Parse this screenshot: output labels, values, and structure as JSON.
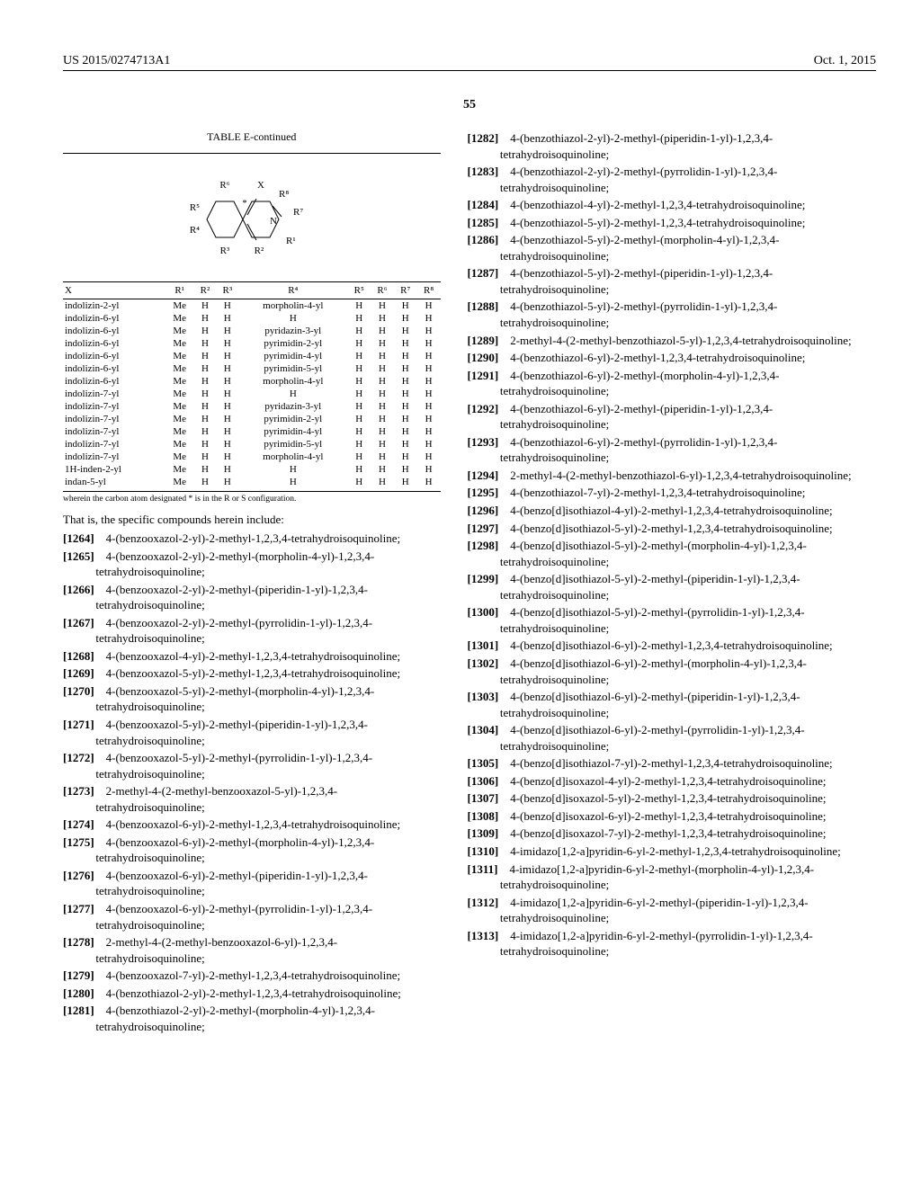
{
  "header": {
    "pubno": "US 2015/0274713A1",
    "pubdate": "Oct. 1, 2015",
    "pagenum": "55"
  },
  "table": {
    "title": "TABLE E-continued",
    "diagram": "            R⁶        X\n                ╲   ╱  ╲ R⁸\n      R⁵─┤     *        ├─R⁷\n         │    ╱ ╲    ╱│\n         │   │   │  N │\n      R⁴─┤    ╲ ╱    ╲│\n                │        R¹\n            R³        R²",
    "headers": [
      "X",
      "R¹",
      "R²",
      "R³",
      "R⁴",
      "R⁵",
      "R⁶",
      "R⁷",
      "R⁸"
    ],
    "rows": [
      [
        "indolizin-2-yl",
        "Me",
        "H",
        "H",
        "morpholin-4-yl",
        "H",
        "H",
        "H",
        "H"
      ],
      [
        "indolizin-6-yl",
        "Me",
        "H",
        "H",
        "H",
        "H",
        "H",
        "H",
        "H"
      ],
      [
        "indolizin-6-yl",
        "Me",
        "H",
        "H",
        "pyridazin-3-yl",
        "H",
        "H",
        "H",
        "H"
      ],
      [
        "indolizin-6-yl",
        "Me",
        "H",
        "H",
        "pyrimidin-2-yl",
        "H",
        "H",
        "H",
        "H"
      ],
      [
        "indolizin-6-yl",
        "Me",
        "H",
        "H",
        "pyrimidin-4-yl",
        "H",
        "H",
        "H",
        "H"
      ],
      [
        "indolizin-6-yl",
        "Me",
        "H",
        "H",
        "pyrimidin-5-yl",
        "H",
        "H",
        "H",
        "H"
      ],
      [
        "indolizin-6-yl",
        "Me",
        "H",
        "H",
        "morpholin-4-yl",
        "H",
        "H",
        "H",
        "H"
      ],
      [
        "indolizin-7-yl",
        "Me",
        "H",
        "H",
        "H",
        "H",
        "H",
        "H",
        "H"
      ],
      [
        "indolizin-7-yl",
        "Me",
        "H",
        "H",
        "pyridazin-3-yl",
        "H",
        "H",
        "H",
        "H"
      ],
      [
        "indolizin-7-yl",
        "Me",
        "H",
        "H",
        "pyrimidin-2-yl",
        "H",
        "H",
        "H",
        "H"
      ],
      [
        "indolizin-7-yl",
        "Me",
        "H",
        "H",
        "pyrimidin-4-yl",
        "H",
        "H",
        "H",
        "H"
      ],
      [
        "indolizin-7-yl",
        "Me",
        "H",
        "H",
        "pyrimidin-5-yl",
        "H",
        "H",
        "H",
        "H"
      ],
      [
        "indolizin-7-yl",
        "Me",
        "H",
        "H",
        "morpholin-4-yl",
        "H",
        "H",
        "H",
        "H"
      ],
      [
        "1H-inden-2-yl",
        "Me",
        "H",
        "H",
        "H",
        "H",
        "H",
        "H",
        "H"
      ],
      [
        "indan-5-yl",
        "Me",
        "H",
        "H",
        "H",
        "H",
        "H",
        "H",
        "H"
      ]
    ],
    "footnote": "wherein the carbon atom designated * is in the R or S configuration."
  },
  "intro": "That is, the specific compounds herein include:",
  "left_entries": [
    {
      "num": "[1264]",
      "text": "4-(benzooxazol-2-yl)-2-methyl-1,2,3,4-tetrahydroisoquinoline;"
    },
    {
      "num": "[1265]",
      "text": "4-(benzooxazol-2-yl)-2-methyl-(morpholin-4-yl)-1,2,3,4-tetrahydroisoquinoline;"
    },
    {
      "num": "[1266]",
      "text": "4-(benzooxazol-2-yl)-2-methyl-(piperidin-1-yl)-1,2,3,4-tetrahydroisoquinoline;"
    },
    {
      "num": "[1267]",
      "text": "4-(benzooxazol-2-yl)-2-methyl-(pyrrolidin-1-yl)-1,2,3,4-tetrahydroisoquinoline;"
    },
    {
      "num": "[1268]",
      "text": "4-(benzooxazol-4-yl)-2-methyl-1,2,3,4-tetrahydroisoquinoline;"
    },
    {
      "num": "[1269]",
      "text": "4-(benzooxazol-5-yl)-2-methyl-1,2,3,4-tetrahydroisoquinoline;"
    },
    {
      "num": "[1270]",
      "text": "4-(benzooxazol-5-yl)-2-methyl-(morpholin-4-yl)-1,2,3,4-tetrahydroisoquinoline;"
    },
    {
      "num": "[1271]",
      "text": "4-(benzooxazol-5-yl)-2-methyl-(piperidin-1-yl)-1,2,3,4-tetrahydroisoquinoline;"
    },
    {
      "num": "[1272]",
      "text": "4-(benzooxazol-5-yl)-2-methyl-(pyrrolidin-1-yl)-1,2,3,4-tetrahydroisoquinoline;"
    },
    {
      "num": "[1273]",
      "text": "2-methyl-4-(2-methyl-benzooxazol-5-yl)-1,2,3,4-tetrahydroisoquinoline;"
    },
    {
      "num": "[1274]",
      "text": "4-(benzooxazol-6-yl)-2-methyl-1,2,3,4-tetrahydroisoquinoline;"
    },
    {
      "num": "[1275]",
      "text": "4-(benzooxazol-6-yl)-2-methyl-(morpholin-4-yl)-1,2,3,4-tetrahydroisoquinoline;"
    },
    {
      "num": "[1276]",
      "text": "4-(benzooxazol-6-yl)-2-methyl-(piperidin-1-yl)-1,2,3,4-tetrahydroisoquinoline;"
    },
    {
      "num": "[1277]",
      "text": "4-(benzooxazol-6-yl)-2-methyl-(pyrrolidin-1-yl)-1,2,3,4-tetrahydroisoquinoline;"
    },
    {
      "num": "[1278]",
      "text": "2-methyl-4-(2-methyl-benzooxazol-6-yl)-1,2,3,4-tetrahydroisoquinoline;"
    },
    {
      "num": "[1279]",
      "text": "4-(benzooxazol-7-yl)-2-methyl-1,2,3,4-tetrahydroisoquinoline;"
    },
    {
      "num": "[1280]",
      "text": "4-(benzothiazol-2-yl)-2-methyl-1,2,3,4-tetrahydroisoquinoline;"
    },
    {
      "num": "[1281]",
      "text": "4-(benzothiazol-2-yl)-2-methyl-(morpholin-4-yl)-1,2,3,4-tetrahydroisoquinoline;"
    }
  ],
  "right_entries": [
    {
      "num": "[1282]",
      "text": "4-(benzothiazol-2-yl)-2-methyl-(piperidin-1-yl)-1,2,3,4-tetrahydroisoquinoline;"
    },
    {
      "num": "[1283]",
      "text": "4-(benzothiazol-2-yl)-2-methyl-(pyrrolidin-1-yl)-1,2,3,4-tetrahydroisoquinoline;"
    },
    {
      "num": "[1284]",
      "text": "4-(benzothiazol-4-yl)-2-methyl-1,2,3,4-tetrahydroisoquinoline;"
    },
    {
      "num": "[1285]",
      "text": "4-(benzothiazol-5-yl)-2-methyl-1,2,3,4-tetrahydroisoquinoline;"
    },
    {
      "num": "[1286]",
      "text": "4-(benzothiazol-5-yl)-2-methyl-(morpholin-4-yl)-1,2,3,4-tetrahydroisoquinoline;"
    },
    {
      "num": "[1287]",
      "text": "4-(benzothiazol-5-yl)-2-methyl-(piperidin-1-yl)-1,2,3,4-tetrahydroisoquinoline;"
    },
    {
      "num": "[1288]",
      "text": "4-(benzothiazol-5-yl)-2-methyl-(pyrrolidin-1-yl)-1,2,3,4-tetrahydroisoquinoline;"
    },
    {
      "num": "[1289]",
      "text": "2-methyl-4-(2-methyl-benzothiazol-5-yl)-1,2,3,4-tetrahydroisoquinoline;"
    },
    {
      "num": "[1290]",
      "text": "4-(benzothiazol-6-yl)-2-methyl-1,2,3,4-tetrahydroisoquinoline;"
    },
    {
      "num": "[1291]",
      "text": "4-(benzothiazol-6-yl)-2-methyl-(morpholin-4-yl)-1,2,3,4-tetrahydroisoquinoline;"
    },
    {
      "num": "[1292]",
      "text": "4-(benzothiazol-6-yl)-2-methyl-(piperidin-1-yl)-1,2,3,4-tetrahydroisoquinoline;"
    },
    {
      "num": "[1293]",
      "text": "4-(benzothiazol-6-yl)-2-methyl-(pyrrolidin-1-yl)-1,2,3,4-tetrahydroisoquinoline;"
    },
    {
      "num": "[1294]",
      "text": "2-methyl-4-(2-methyl-benzothiazol-6-yl)-1,2,3,4-tetrahydroisoquinoline;"
    },
    {
      "num": "[1295]",
      "text": "4-(benzothiazol-7-yl)-2-methyl-1,2,3,4-tetrahydroisoquinoline;"
    },
    {
      "num": "[1296]",
      "text": "4-(benzo[d]isothiazol-4-yl)-2-methyl-1,2,3,4-tetrahydroisoquinoline;"
    },
    {
      "num": "[1297]",
      "text": "4-(benzo[d]isothiazol-5-yl)-2-methyl-1,2,3,4-tetrahydroisoquinoline;"
    },
    {
      "num": "[1298]",
      "text": "4-(benzo[d]isothiazol-5-yl)-2-methyl-(morpholin-4-yl)-1,2,3,4-tetrahydroisoquinoline;"
    },
    {
      "num": "[1299]",
      "text": "4-(benzo[d]isothiazol-5-yl)-2-methyl-(piperidin-1-yl)-1,2,3,4-tetrahydroisoquinoline;"
    },
    {
      "num": "[1300]",
      "text": "4-(benzo[d]isothiazol-5-yl)-2-methyl-(pyrrolidin-1-yl)-1,2,3,4-tetrahydroisoquinoline;"
    },
    {
      "num": "[1301]",
      "text": "4-(benzo[d]isothiazol-6-yl)-2-methyl-1,2,3,4-tetrahydroisoquinoline;"
    },
    {
      "num": "[1302]",
      "text": "4-(benzo[d]isothiazol-6-yl)-2-methyl-(morpholin-4-yl)-1,2,3,4-tetrahydroisoquinoline;"
    },
    {
      "num": "[1303]",
      "text": "4-(benzo[d]isothiazol-6-yl)-2-methyl-(piperidin-1-yl)-1,2,3,4-tetrahydroisoquinoline;"
    },
    {
      "num": "[1304]",
      "text": "4-(benzo[d]isothiazol-6-yl)-2-methyl-(pyrrolidin-1-yl)-1,2,3,4-tetrahydroisoquinoline;"
    },
    {
      "num": "[1305]",
      "text": "4-(benzo[d]isothiazol-7-yl)-2-methyl-1,2,3,4-tetrahydroisoquinoline;"
    },
    {
      "num": "[1306]",
      "text": "4-(benzo[d]isoxazol-4-yl)-2-methyl-1,2,3,4-tetrahydroisoquinoline;"
    },
    {
      "num": "[1307]",
      "text": "4-(benzo[d]isoxazol-5-yl)-2-methyl-1,2,3,4-tetrahydroisoquinoline;"
    },
    {
      "num": "[1308]",
      "text": "4-(benzo[d]isoxazol-6-yl)-2-methyl-1,2,3,4-tetrahydroisoquinoline;"
    },
    {
      "num": "[1309]",
      "text": "4-(benzo[d]isoxazol-7-yl)-2-methyl-1,2,3,4-tetrahydroisoquinoline;"
    },
    {
      "num": "[1310]",
      "text": "4-imidazo[1,2-a]pyridin-6-yl-2-methyl-1,2,3,4-tetrahydroisoquinoline;"
    },
    {
      "num": "[1311]",
      "text": "4-imidazo[1,2-a]pyridin-6-yl-2-methyl-(morpholin-4-yl)-1,2,3,4-tetrahydroisoquinoline;"
    },
    {
      "num": "[1312]",
      "text": "4-imidazo[1,2-a]pyridin-6-yl-2-methyl-(piperidin-1-yl)-1,2,3,4-tetrahydroisoquinoline;"
    },
    {
      "num": "[1313]",
      "text": "4-imidazo[1,2-a]pyridin-6-yl-2-methyl-(pyrrolidin-1-yl)-1,2,3,4-tetrahydroisoquinoline;"
    }
  ]
}
